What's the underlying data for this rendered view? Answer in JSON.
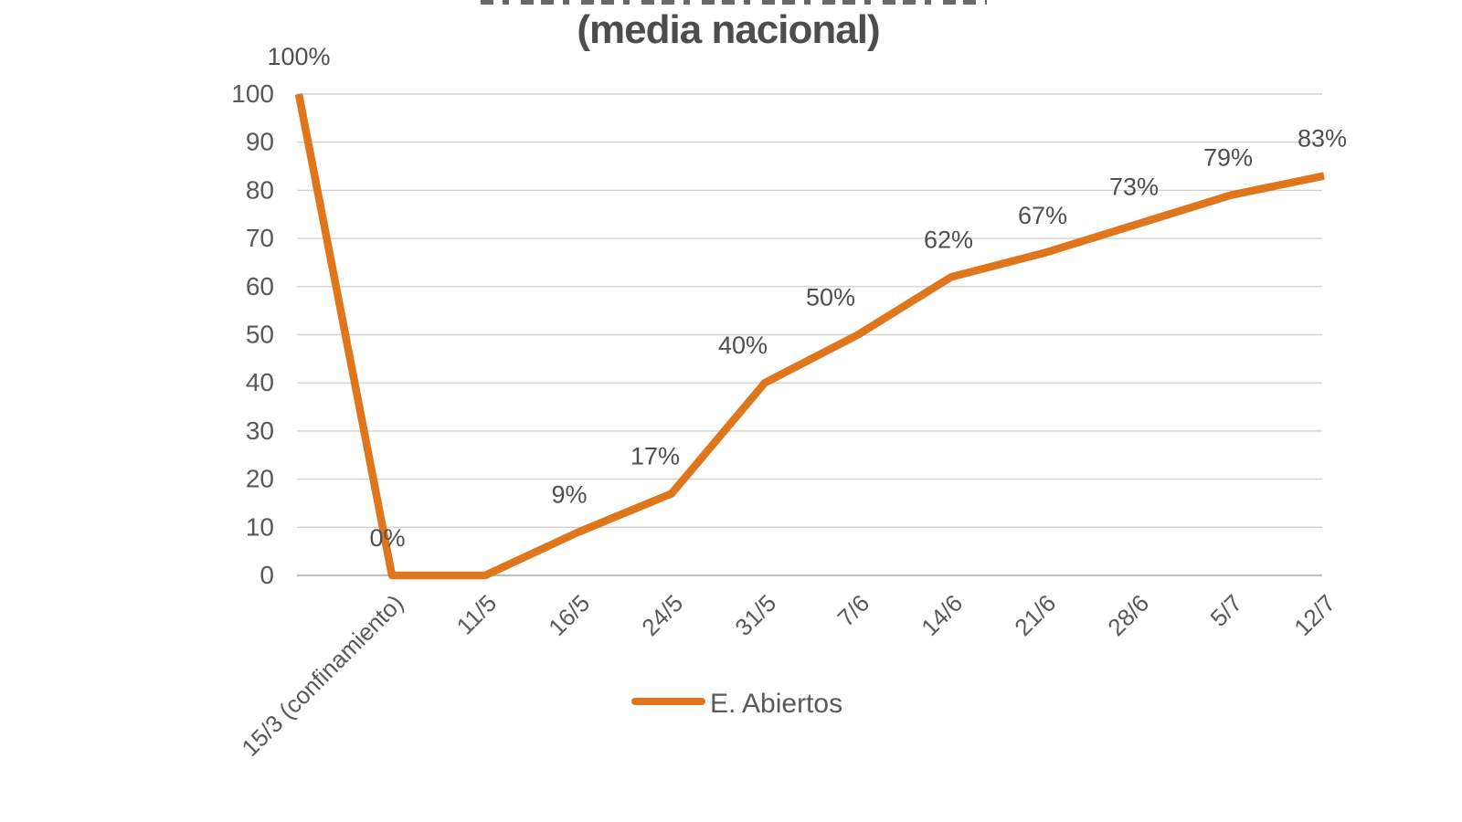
{
  "title": {
    "line2": "(media nacional)"
  },
  "legend": {
    "label": "E. Abiertos"
  },
  "colors": {
    "series_line": "#e0761c",
    "axis_text": "#595959",
    "label_text": "#4f4f4f",
    "title_text": "#4d4d4d",
    "gridline": "#d2d2d2",
    "zero_line": "#bdbdbd",
    "background": "#ffffff"
  },
  "chart_data": {
    "type": "line",
    "title_partial": "(media nacional)",
    "categories": [
      "",
      "15/3 (confinamiento)",
      "11/5",
      "16/5",
      "24/5",
      "31/5",
      "7/6",
      "14/6",
      "21/6",
      "28/6",
      "5/7",
      "12/7"
    ],
    "series": [
      {
        "name": "E. Abiertos",
        "values": [
          100,
          0,
          0,
          9,
          17,
          40,
          50,
          62,
          67,
          73,
          79,
          83
        ],
        "point_labels": [
          "100%",
          "0%",
          "",
          "9%",
          "17%",
          "40%",
          "50%",
          "62%",
          "67%",
          "73%",
          "79%",
          "83%"
        ]
      }
    ],
    "y_ticks": [
      0,
      10,
      20,
      30,
      40,
      50,
      60,
      70,
      80,
      90,
      100
    ],
    "ylim": [
      0,
      100
    ],
    "grid": true,
    "legend_position": "bottom"
  }
}
